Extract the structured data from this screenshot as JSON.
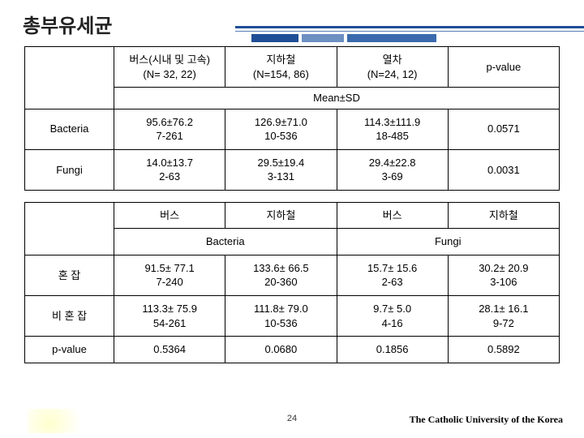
{
  "title": "총부유세균",
  "table1": {
    "headers": {
      "bus": "버스(시내 및 고속)\n(N= 32, 22)",
      "subway": "지하철\n(N=154, 86)",
      "train": "열차\n(N=24, 12)",
      "pvalue": "p-value"
    },
    "meansd": "Mean±SD",
    "rows": [
      {
        "label": "Bacteria",
        "bus": "95.6±76.2\n7-261",
        "subway": "126.9±71.0\n10-536",
        "train": "114.3±111.9\n18-485",
        "p": "0.0571"
      },
      {
        "label": "Fungi",
        "bus": "14.0±13.7\n2-63",
        "subway": "29.5±19.4\n3-131",
        "train": "29.4±22.8\n3-69",
        "p": "0.0031"
      }
    ]
  },
  "table2": {
    "headers": {
      "bus1": "버스",
      "sub1": "지하철",
      "bus2": "버스",
      "sub2": "지하철"
    },
    "subheaders": {
      "bact": "Bacteria",
      "fungi": "Fungi"
    },
    "rows": [
      {
        "label": "혼 잡",
        "c1": "91.5± 77.1\n7-240",
        "c2": "133.6± 66.5\n20-360",
        "c3": "15.7± 15.6\n2-63",
        "c4": "30.2± 20.9\n3-106"
      },
      {
        "label": "비 혼 잡",
        "c1": "113.3± 75.9\n54-261",
        "c2": "111.8± 79.0\n10-536",
        "c3": "9.7± 5.0\n4-16",
        "c4": "28.1± 16.1\n9-72"
      },
      {
        "label": "p-value",
        "c1": "0.5364",
        "c2": "0.0680",
        "c3": "0.1856",
        "c4": "0.5892"
      }
    ]
  },
  "footer": {
    "page": "24",
    "uni": "The Catholic University of the Korea"
  }
}
